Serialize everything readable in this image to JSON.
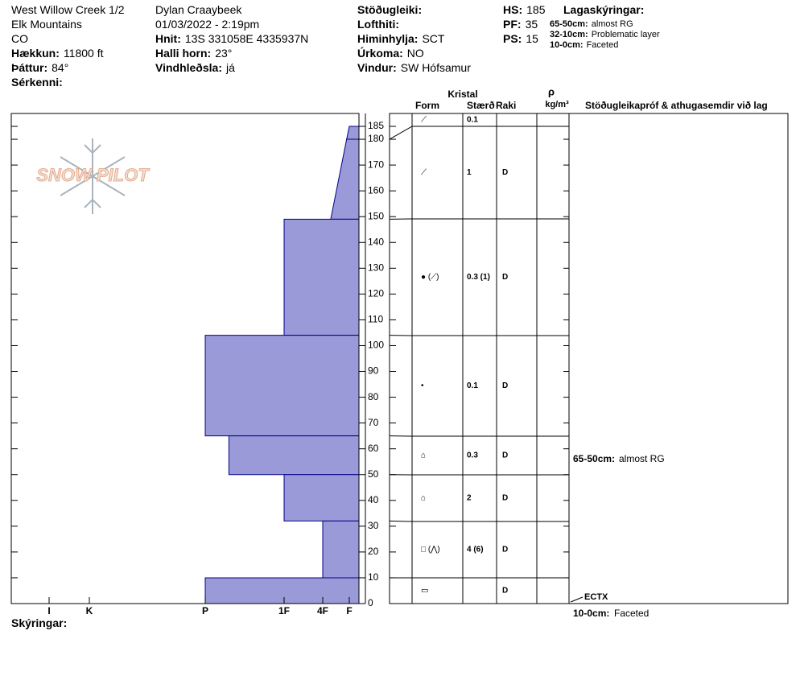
{
  "header": {
    "location": [
      "West Willow Creek 1/2",
      "Elk Mountains",
      "CO"
    ],
    "fields1": [
      {
        "label": "Hækkun:",
        "value": "11800 ft"
      },
      {
        "label": "Þáttur:",
        "value": "84°"
      },
      {
        "label": "Sérkenni:"
      }
    ],
    "observer": "Dylan Craaybeek",
    "datetime": "01/03/2022 - 2:19pm",
    "fields2": [
      {
        "label": "Hnit:",
        "value": "13S 331058E 4335937N"
      },
      {
        "label": "Halli horn:",
        "value": "23°"
      },
      {
        "label": "Vindhleðsla:",
        "value": "já"
      }
    ],
    "fields3": [
      {
        "label": "Stöðugleiki:"
      },
      {
        "label": "Lofthiti:"
      },
      {
        "label": "Himinhylja:",
        "value": "SCT"
      },
      {
        "label": "Úrkoma:",
        "value": "NO"
      },
      {
        "label": "Vindur:",
        "value": "SW Hófsamur"
      }
    ],
    "fields4": [
      {
        "label": "HS:",
        "value": 185
      },
      {
        "label": "PF:",
        "value": 35
      },
      {
        "label": "PS:",
        "value": 15
      }
    ],
    "notes_title": "Lagaskýringar:",
    "notes": [
      {
        "label": "65-50cm:",
        "text": "almost RG"
      },
      {
        "label": "32-10cm:",
        "text": "Problematic layer"
      },
      {
        "label": "10-0cm:",
        "text": "Faceted"
      }
    ]
  },
  "logo": "SNOW PILOT",
  "chart_data": {
    "type": "profile",
    "color": "#9a9ad8",
    "layers": [
      {
        "top": 185,
        "bottom": 180,
        "hardness_top": 1,
        "hardness_bottom": 1.1
      },
      {
        "top": 180,
        "bottom": 149,
        "hardness_top": 1.1,
        "hardness_bottom": 1.7
      },
      {
        "top": 149,
        "bottom": 104,
        "hardness_top": 3,
        "hardness_bottom": 3
      },
      {
        "top": 104,
        "bottom": 65,
        "hardness_top": 4,
        "hardness_bottom": 4
      },
      {
        "top": 65,
        "bottom": 50,
        "hardness_top": 3.7,
        "hardness_bottom": 3.7
      },
      {
        "top": 50,
        "bottom": 32,
        "hardness_top": 3,
        "hardness_bottom": 3
      },
      {
        "top": 32,
        "bottom": 10,
        "hardness_top": 2,
        "hardness_bottom": 2
      },
      {
        "top": 10,
        "bottom": 0,
        "hardness_top": 4,
        "hardness_bottom": 4
      }
    ],
    "ylim": [
      0,
      190
    ],
    "yticks": [
      0,
      10,
      20,
      30,
      40,
      50,
      60,
      70,
      80,
      90,
      100,
      110,
      120,
      130,
      140,
      150,
      160,
      170,
      180,
      185
    ],
    "xlim": [
      7,
      0
    ],
    "xticks": [
      {
        "value": 6,
        "label": "I"
      },
      {
        "value": 5,
        "label": "K"
      },
      {
        "value": 4,
        "label": "P"
      },
      {
        "value": 3,
        "label": "1F"
      },
      {
        "value": 2,
        "label": "4F"
      },
      {
        "value": 1,
        "label": "F"
      }
    ],
    "test": {
      "result": "ECTX",
      "depth": 0
    }
  },
  "table": {
    "group": "Kristal",
    "form": "Form",
    "size": "Stærð",
    "moisture": "Raki",
    "density": "ρ",
    "density_unit": "kg/m³",
    "comments": "Stöðugleikapróf & athugasemdir við lag",
    "rows": [
      {
        "form": "⟋",
        "size": "0.1"
      },
      {
        "form": "⟋",
        "size": "1",
        "moisture": "D"
      },
      {
        "form": "● (⟋)",
        "size": "0.3 (1)",
        "moisture": "D"
      },
      {
        "form": "•",
        "size": "0.1",
        "moisture": "D"
      },
      {
        "form": "⌂",
        "size": "0.3",
        "moisture": "D",
        "comment": {
          "label": "65-50cm:",
          "text": "almost RG"
        }
      },
      {
        "form": "⌂",
        "size": "2",
        "moisture": "D"
      },
      {
        "form": "□ (⋀)",
        "size": "4 (6)",
        "moisture": "D"
      },
      {
        "form": "▭",
        "moisture": "D"
      }
    ],
    "footnote": {
      "label": "10-0cm:",
      "text": "Faceted"
    }
  },
  "footer": "Skýringar:"
}
